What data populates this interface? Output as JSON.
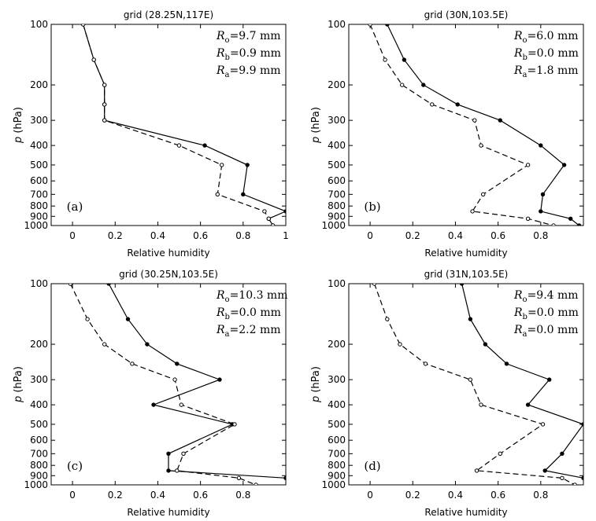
{
  "chart_data": [
    {
      "type": "line",
      "panel_label": "(a)",
      "title": "grid (28.25N,117E)",
      "xlabel": "Relative humidity",
      "ylabel_var": "p",
      "ylabel_unit": "(hPa)",
      "xlim": [
        -0.1,
        1.0
      ],
      "xticks": [
        0,
        0.2,
        0.4,
        0.6,
        0.8,
        1
      ],
      "xtick_labels": [
        "0",
        "0.2",
        "0.4",
        "0.6",
        "0.8",
        "1"
      ],
      "ylim": [
        100,
        1000
      ],
      "yscale": "log",
      "yticks": [
        100,
        200,
        300,
        400,
        500,
        600,
        700,
        800,
        900,
        1000
      ],
      "ytick_labels": [
        "100",
        "200",
        "300",
        "400",
        "500",
        "600",
        "700",
        "800",
        "900",
        "1000"
      ],
      "annotations": [
        {
          "sym": "R",
          "sub": "o",
          "text": "=9.7 mm"
        },
        {
          "sym": "R",
          "sub": "b",
          "text": "=0.9 mm"
        },
        {
          "sym": "R",
          "sub": "a",
          "text": "=9.9 mm"
        }
      ],
      "series": [
        {
          "style": "solid",
          "x": [
            0.05,
            0.1,
            0.15,
            0.15,
            0.15,
            0.62,
            0.82,
            0.8,
            1.0,
            0.92,
            0.94
          ],
          "y": [
            100,
            150,
            200,
            250,
            300,
            400,
            500,
            700,
            850,
            925,
            1000
          ]
        },
        {
          "style": "dashed",
          "x": [
            0.05,
            0.1,
            0.15,
            0.15,
            0.15,
            0.5,
            0.7,
            0.68,
            0.9,
            0.92,
            0.94
          ],
          "y": [
            100,
            150,
            200,
            250,
            300,
            400,
            500,
            700,
            850,
            925,
            1000
          ]
        }
      ]
    },
    {
      "type": "line",
      "panel_label": "(b)",
      "title": "grid (30N,103.5E)",
      "xlabel": "Relative humidity",
      "ylabel_var": "p",
      "ylabel_unit": "(hPa)",
      "xlim": [
        -0.1,
        1.0
      ],
      "xticks": [
        0,
        0.2,
        0.4,
        0.6,
        0.8
      ],
      "xtick_labels": [
        "0",
        "0.2",
        "0.4",
        "0.6",
        "0.8"
      ],
      "ylim": [
        100,
        1000
      ],
      "yscale": "log",
      "yticks": [
        100,
        200,
        300,
        400,
        500,
        600,
        700,
        800,
        900,
        1000
      ],
      "ytick_labels": [
        "100",
        "200",
        "300",
        "400",
        "500",
        "600",
        "700",
        "800",
        "900",
        "1000"
      ],
      "annotations": [
        {
          "sym": "R",
          "sub": "o",
          "text": "=6.0 mm"
        },
        {
          "sym": "R",
          "sub": "b",
          "text": "=0.0 mm"
        },
        {
          "sym": "R",
          "sub": "a",
          "text": "=1.8 mm"
        }
      ],
      "series": [
        {
          "style": "solid",
          "x": [
            0.08,
            0.16,
            0.25,
            0.41,
            0.61,
            0.8,
            0.91,
            0.81,
            0.8,
            0.94,
            0.98
          ],
          "y": [
            100,
            150,
            200,
            250,
            300,
            400,
            500,
            700,
            850,
            925,
            1000
          ]
        },
        {
          "style": "dashed",
          "x": [
            0.0,
            0.07,
            0.15,
            0.29,
            0.49,
            0.52,
            0.74,
            0.53,
            0.48,
            0.74,
            0.86
          ],
          "y": [
            100,
            150,
            200,
            250,
            300,
            400,
            500,
            700,
            850,
            925,
            1000
          ]
        }
      ]
    },
    {
      "type": "line",
      "panel_label": "(c)",
      "title": "grid (30.25N,103.5E)",
      "xlabel": "Relative humidity",
      "ylabel_var": "p",
      "ylabel_unit": "(hPa)",
      "xlim": [
        -0.1,
        1.0
      ],
      "xticks": [
        0,
        0.2,
        0.4,
        0.6,
        0.8
      ],
      "xtick_labels": [
        "0",
        "0.2",
        "0.4",
        "0.6",
        "0.8"
      ],
      "ylim": [
        100,
        1000
      ],
      "yscale": "log",
      "yticks": [
        100,
        200,
        300,
        400,
        500,
        600,
        700,
        800,
        900,
        1000
      ],
      "ytick_labels": [
        "100",
        "200",
        "300",
        "400",
        "500",
        "600",
        "700",
        "800",
        "900",
        "1000"
      ],
      "annotations": [
        {
          "sym": "R",
          "sub": "o",
          "text": "=10.3 mm"
        },
        {
          "sym": "R",
          "sub": "b",
          "text": "=0.0 mm"
        },
        {
          "sym": "R",
          "sub": "a",
          "text": "=2.2 mm"
        }
      ],
      "series": [
        {
          "style": "solid",
          "x": [
            0.17,
            0.26,
            0.35,
            0.49,
            0.69,
            0.38,
            0.75,
            0.45,
            0.45,
            1.0
          ],
          "y": [
            100,
            150,
            200,
            250,
            300,
            400,
            500,
            700,
            850,
            925
          ]
        },
        {
          "style": "dashed",
          "x": [
            -0.01,
            0.07,
            0.15,
            0.28,
            0.48,
            0.51,
            0.76,
            0.52,
            0.49,
            0.78,
            0.86
          ],
          "y": [
            100,
            150,
            200,
            250,
            300,
            400,
            500,
            700,
            850,
            925,
            1000
          ]
        }
      ]
    },
    {
      "type": "line",
      "panel_label": "(d)",
      "title": "grid (31N,103.5E)",
      "xlabel": "Relative humidity",
      "ylabel_var": "p",
      "ylabel_unit": "(hPa)",
      "xlim": [
        -0.1,
        1.0
      ],
      "xticks": [
        0,
        0.2,
        0.4,
        0.6,
        0.8
      ],
      "xtick_labels": [
        "0",
        "0.2",
        "0.4",
        "0.6",
        "0.8"
      ],
      "ylim": [
        100,
        1000
      ],
      "yscale": "log",
      "yticks": [
        100,
        200,
        300,
        400,
        500,
        600,
        700,
        800,
        900,
        1000
      ],
      "ytick_labels": [
        "100",
        "200",
        "300",
        "400",
        "500",
        "600",
        "700",
        "800",
        "900",
        "1000"
      ],
      "annotations": [
        {
          "sym": "R",
          "sub": "o",
          "text": "=9.4 mm"
        },
        {
          "sym": "R",
          "sub": "b",
          "text": "=0.0 mm"
        },
        {
          "sym": "R",
          "sub": "a",
          "text": "=0.0 mm"
        }
      ],
      "series": [
        {
          "style": "solid",
          "x": [
            0.43,
            0.47,
            0.54,
            0.64,
            0.84,
            0.74,
            1.0,
            0.9,
            0.82,
            1.0
          ],
          "y": [
            100,
            150,
            200,
            250,
            300,
            400,
            500,
            700,
            850,
            925
          ]
        },
        {
          "style": "dashed",
          "x": [
            0.02,
            0.08,
            0.14,
            0.26,
            0.47,
            0.52,
            0.81,
            0.61,
            0.5,
            0.9,
            0.96
          ],
          "y": [
            100,
            150,
            200,
            250,
            300,
            400,
            500,
            700,
            850,
            925,
            1000
          ]
        }
      ]
    }
  ]
}
